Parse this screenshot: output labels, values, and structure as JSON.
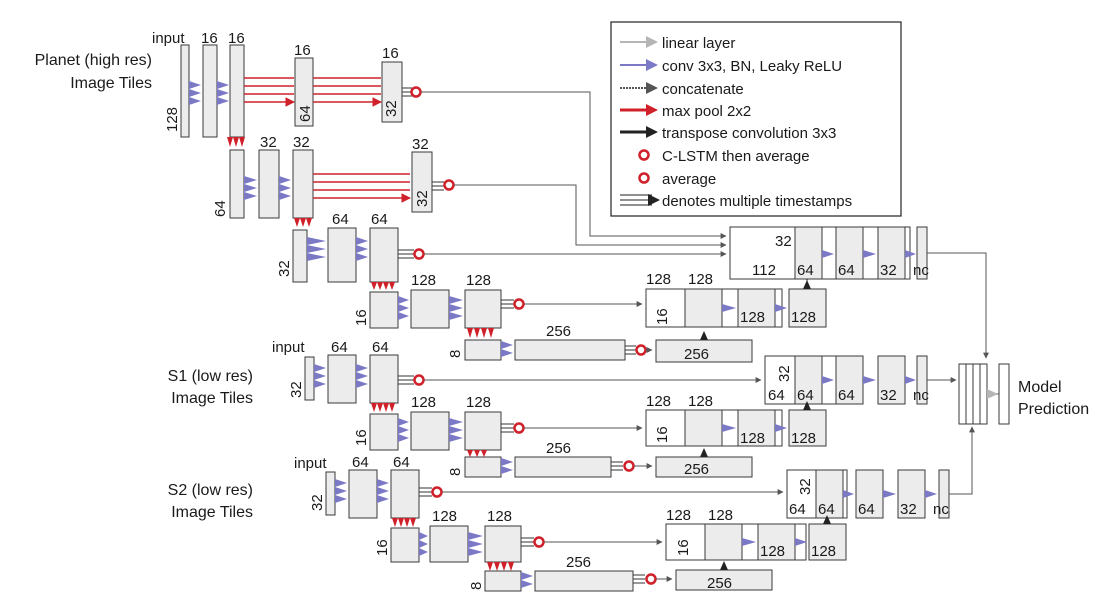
{
  "inputs": {
    "planet": {
      "line1": "Planet (high res)",
      "line2": "Image Tiles"
    },
    "s1": {
      "line1": "S1 (low res)",
      "line2": "Image Tiles"
    },
    "s2": {
      "line1": "S2 (low res)",
      "line2": "Image Tiles"
    }
  },
  "output_label": {
    "line1": "Model",
    "line2": "Prediction"
  },
  "legend": {
    "linear": "linear layer",
    "conv": "conv 3x3, BN, Leaky ReLU",
    "concat": "concatenate",
    "maxpool": "max pool 2x2",
    "transpose": "transpose convolution 3x3",
    "clstm": "C-LSTM then average",
    "average": "average",
    "multi": "denotes multiple timestamps"
  },
  "labels": {
    "input": "input",
    "n8": "8",
    "n16": "16",
    "n32": "32",
    "n64": "64",
    "n112": "112",
    "n128": "128",
    "n256": "256",
    "nc": "nc"
  },
  "colors": {
    "conv": "#7b78c6",
    "maxpool": "#d0202a",
    "linear": "#b5b5b5",
    "transpose": "#222222"
  }
}
